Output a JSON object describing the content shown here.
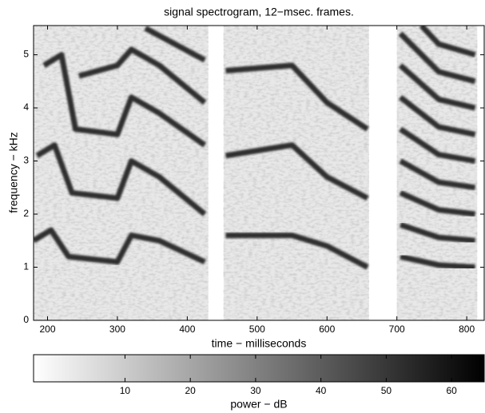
{
  "chart_data": {
    "type": "spectrogram",
    "title": "signal spectrogram, 12−msec. frames.",
    "xlabel": "time − milliseconds",
    "ylabel": "frequency − kHz",
    "xlim": [
      180,
      825
    ],
    "ylim": [
      0,
      5.55
    ],
    "xticks": [
      200,
      300,
      400,
      500,
      600,
      700,
      800
    ],
    "yticks": [
      0,
      1,
      2,
      3,
      4,
      5
    ],
    "segments": [
      [
        180,
        430
      ],
      [
        452,
        660
      ],
      [
        700,
        815
      ]
    ],
    "tracks": [
      {
        "x": [
          180,
          205,
          230,
          300,
          320,
          360,
          425
        ],
        "y": [
          1.5,
          1.7,
          1.2,
          1.1,
          1.6,
          1.5,
          1.1
        ]
      },
      {
        "x": [
          185,
          210,
          235,
          300,
          320,
          360,
          425
        ],
        "y": [
          3.1,
          3.3,
          2.4,
          2.3,
          3.0,
          2.7,
          2.0
        ]
      },
      {
        "x": [
          195,
          220,
          240,
          300,
          320,
          360,
          425
        ],
        "y": [
          4.8,
          5.0,
          3.6,
          3.5,
          4.2,
          3.9,
          3.3
        ]
      },
      {
        "x": [
          245,
          300,
          320,
          360,
          425
        ],
        "y": [
          4.6,
          4.8,
          5.1,
          4.8,
          4.1
        ]
      },
      {
        "x": [
          340,
          425
        ],
        "y": [
          5.5,
          4.9
        ]
      },
      {
        "x": [
          455,
          550,
          600,
          658
        ],
        "y": [
          1.6,
          1.6,
          1.4,
          1.0
        ]
      },
      {
        "x": [
          455,
          550,
          600,
          658
        ],
        "y": [
          3.1,
          3.3,
          2.7,
          2.3
        ]
      },
      {
        "x": [
          455,
          550,
          600,
          658
        ],
        "y": [
          4.7,
          4.8,
          4.1,
          3.6
        ]
      },
      {
        "x": [
          705,
          760,
          812
        ],
        "y": [
          1.2,
          1.04,
          1.0
        ]
      },
      {
        "x": [
          705,
          760,
          812
        ],
        "y": [
          1.8,
          1.56,
          1.5
        ]
      },
      {
        "x": [
          705,
          760,
          812
        ],
        "y": [
          2.4,
          2.08,
          2.0
        ]
      },
      {
        "x": [
          705,
          760,
          812
        ],
        "y": [
          3.0,
          2.6,
          2.5
        ]
      },
      {
        "x": [
          705,
          760,
          812
        ],
        "y": [
          3.6,
          3.12,
          3.0
        ]
      },
      {
        "x": [
          705,
          760,
          812
        ],
        "y": [
          4.2,
          3.64,
          3.5
        ]
      },
      {
        "x": [
          705,
          760,
          812
        ],
        "y": [
          4.8,
          4.16,
          4.0
        ]
      },
      {
        "x": [
          705,
          760,
          812
        ],
        "y": [
          5.4,
          4.68,
          4.5
        ]
      },
      {
        "x": [
          735,
          760,
          812
        ],
        "y": [
          5.55,
          5.2,
          5.0
        ]
      }
    ],
    "colorbar": {
      "label": "power − dB",
      "lim": [
        -4,
        65
      ],
      "ticks": [
        10,
        20,
        30,
        40,
        50,
        60
      ]
    }
  }
}
